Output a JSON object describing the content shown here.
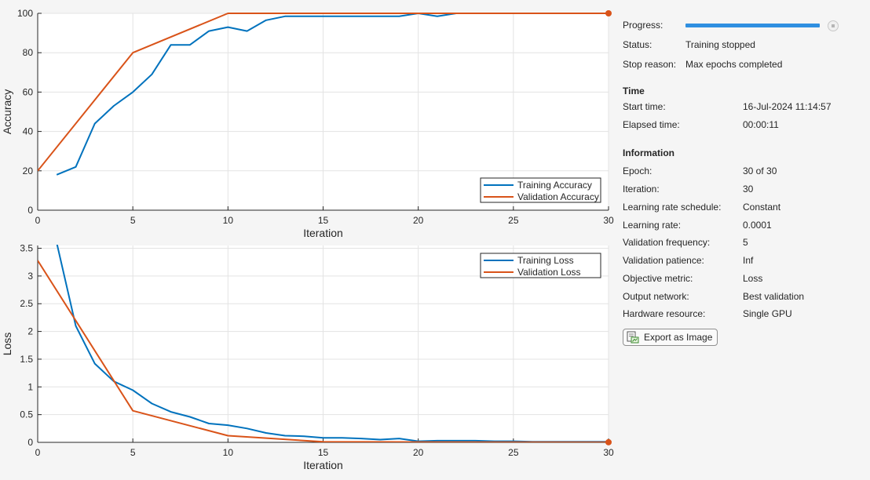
{
  "charts": [
    {
      "id": "accuracy",
      "type": "line",
      "ylabel": "Accuracy",
      "xlabel": "Iteration",
      "xlim": [
        0,
        30
      ],
      "ylim": [
        0,
        100
      ],
      "xticks": [
        0,
        5,
        10,
        15,
        20,
        25,
        30
      ],
      "yticks": [
        0,
        20,
        40,
        60,
        80,
        100
      ],
      "ytick_labels": [
        "0",
        "20",
        "40",
        "60",
        "80",
        "100"
      ],
      "legend": [
        "Training Accuracy",
        "Validation Accuracy"
      ],
      "legend_position": "bottom-right"
    },
    {
      "id": "loss",
      "type": "line",
      "ylabel": "Loss",
      "xlabel": "Iteration",
      "xlim": [
        0,
        30
      ],
      "ylim": [
        0,
        3.55
      ],
      "xticks": [
        0,
        5,
        10,
        15,
        20,
        25,
        30
      ],
      "yticks": [
        0,
        0.5,
        1,
        1.5,
        2,
        2.5,
        3,
        3.5
      ],
      "ytick_labels": [
        "0",
        "0.5",
        "1",
        "1.5",
        "2",
        "2.5",
        "3",
        "3.5"
      ],
      "legend": [
        "Training Loss",
        "Validation Loss"
      ],
      "legend_position": "top-right"
    }
  ],
  "chart_data": [
    {
      "type": "line",
      "xlabel": "Iteration",
      "ylabel": "Accuracy",
      "xlim": [
        0,
        30
      ],
      "ylim": [
        0,
        100
      ],
      "grid": true,
      "legend_position": "bottom-right",
      "series": [
        {
          "name": "Training Accuracy",
          "color": "#0072bd",
          "x": [
            1,
            2,
            3,
            4,
            5,
            6,
            7,
            8,
            9,
            10,
            11,
            12,
            13,
            14,
            15,
            16,
            17,
            18,
            19,
            20,
            21,
            22,
            23,
            24,
            25,
            26,
            27,
            28,
            29,
            30
          ],
          "y": [
            18,
            22,
            44,
            53,
            60,
            69,
            84,
            84,
            91,
            93,
            91,
            96.5,
            98.5,
            98.5,
            98.5,
            98.5,
            98.5,
            98.5,
            98.5,
            100,
            98.5,
            100,
            100,
            100,
            100,
            100,
            100,
            100,
            100,
            100
          ]
        },
        {
          "name": "Validation Accuracy",
          "color": "#d95319",
          "x": [
            0,
            5,
            10,
            15,
            20,
            25,
            30
          ],
          "y": [
            20,
            80,
            100,
            100,
            100,
            100,
            100
          ],
          "final_marker": true
        }
      ]
    },
    {
      "type": "line",
      "xlabel": "Iteration",
      "ylabel": "Loss",
      "xlim": [
        0,
        30
      ],
      "ylim": [
        0,
        3.55
      ],
      "grid": true,
      "legend_position": "top-right",
      "series": [
        {
          "name": "Training Loss",
          "color": "#0072bd",
          "x": [
            1,
            2,
            3,
            4,
            5,
            6,
            7,
            8,
            9,
            10,
            11,
            12,
            13,
            14,
            15,
            16,
            17,
            18,
            19,
            20,
            21,
            22,
            23,
            24,
            25,
            26,
            27,
            28,
            29,
            30
          ],
          "y": [
            3.6,
            2.1,
            1.42,
            1.1,
            0.94,
            0.7,
            0.55,
            0.46,
            0.34,
            0.31,
            0.25,
            0.17,
            0.12,
            0.11,
            0.08,
            0.08,
            0.07,
            0.05,
            0.07,
            0.02,
            0.03,
            0.03,
            0.03,
            0.02,
            0.02,
            0.01,
            0.01,
            0.01,
            0.01,
            0.01
          ]
        },
        {
          "name": "Validation Loss",
          "color": "#d95319",
          "x": [
            0,
            5,
            10,
            15,
            20,
            25,
            30
          ],
          "y": [
            3.28,
            0.57,
            0.12,
            0.01,
            0.005,
            0.003,
            0.002
          ],
          "final_marker": true
        }
      ]
    }
  ],
  "panel": {
    "progress_label": "Progress:",
    "progress_value": 1.0,
    "status_label": "Status:",
    "status_value": "Training stopped",
    "stop_reason_label": "Stop reason:",
    "stop_reason_value": "Max epochs completed",
    "time_heading": "Time",
    "start_time_label": "Start time:",
    "start_time_value": "16-Jul-2024 11:14:57",
    "elapsed_label": "Elapsed time:",
    "elapsed_value": "00:00:11",
    "info_heading": "Information",
    "info": [
      {
        "label": "Epoch:",
        "value": "30 of 30"
      },
      {
        "label": "Iteration:",
        "value": "30"
      },
      {
        "label": "Learning rate schedule:",
        "value": "Constant"
      },
      {
        "label": "Learning rate:",
        "value": "0.0001"
      },
      {
        "label": "Validation frequency:",
        "value": "5"
      },
      {
        "label": "Validation patience:",
        "value": "Inf"
      },
      {
        "label": "Objective metric:",
        "value": "Loss"
      },
      {
        "label": "Output network:",
        "value": "Best validation"
      },
      {
        "label": "Hardware resource:",
        "value": "Single GPU"
      }
    ],
    "export_button_label": "Export as Image"
  }
}
